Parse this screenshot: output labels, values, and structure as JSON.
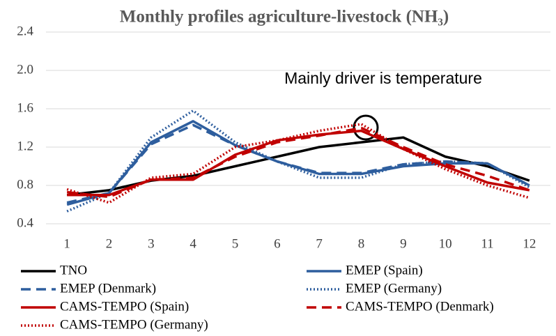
{
  "chart_data": {
    "type": "line",
    "title": "Monthly profiles agriculture-livestock (NH₃)",
    "annotation": "Mainly driver is temperature",
    "categories": [
      "1",
      "2",
      "3",
      "4",
      "5",
      "6",
      "7",
      "8",
      "9",
      "10",
      "11",
      "12"
    ],
    "ylim": [
      0.4,
      2.4
    ],
    "yticks": [
      0.4,
      0.8,
      1.2,
      1.6,
      {
        "value": 2,
        "label": "2.0"
      },
      2.4
    ],
    "grid": true,
    "series": [
      {
        "name": "TNO",
        "color": "#000000",
        "dash": "solid",
        "values": [
          0.7,
          0.75,
          0.85,
          0.9,
          1.0,
          1.1,
          1.2,
          1.25,
          1.3,
          1.1,
          1.0,
          0.85
        ]
      },
      {
        "name": "EMEP (Spain)",
        "color": "#2e5e9e",
        "dash": "solid",
        "values": [
          0.6,
          0.72,
          1.25,
          1.47,
          1.22,
          1.05,
          0.92,
          0.92,
          1.0,
          1.03,
          1.03,
          0.8
        ]
      },
      {
        "name": "EMEP (Denmark)",
        "color": "#2e5e9e",
        "dash": "dashed",
        "values": [
          0.62,
          0.72,
          1.23,
          1.43,
          1.22,
          1.05,
          0.93,
          0.93,
          1.02,
          1.05,
          1.03,
          0.8
        ]
      },
      {
        "name": "EMEP (Germany)",
        "color": "#2e5e9e",
        "dash": "dotted",
        "values": [
          0.53,
          0.72,
          1.3,
          1.58,
          1.25,
          1.05,
          0.88,
          0.88,
          1.02,
          1.05,
          1.03,
          0.78
        ]
      },
      {
        "name": "CAMS-TEMPO (Spain)",
        "color": "#c00000",
        "dash": "solid",
        "values": [
          0.7,
          0.7,
          0.86,
          0.86,
          1.12,
          1.27,
          1.33,
          1.37,
          1.18,
          1.0,
          0.83,
          0.75
        ]
      },
      {
        "name": "CAMS-TEMPO (Denmark)",
        "color": "#c00000",
        "dash": "dashed",
        "values": [
          0.73,
          0.68,
          0.86,
          0.88,
          1.1,
          1.25,
          1.32,
          1.4,
          1.2,
          1.02,
          0.9,
          0.75
        ]
      },
      {
        "name": "CAMS-TEMPO (Germany)",
        "color": "#c00000",
        "dash": "dotted",
        "values": [
          0.76,
          0.62,
          0.88,
          0.92,
          1.2,
          1.27,
          1.37,
          1.44,
          1.18,
          0.97,
          0.8,
          0.67
        ]
      }
    ]
  }
}
